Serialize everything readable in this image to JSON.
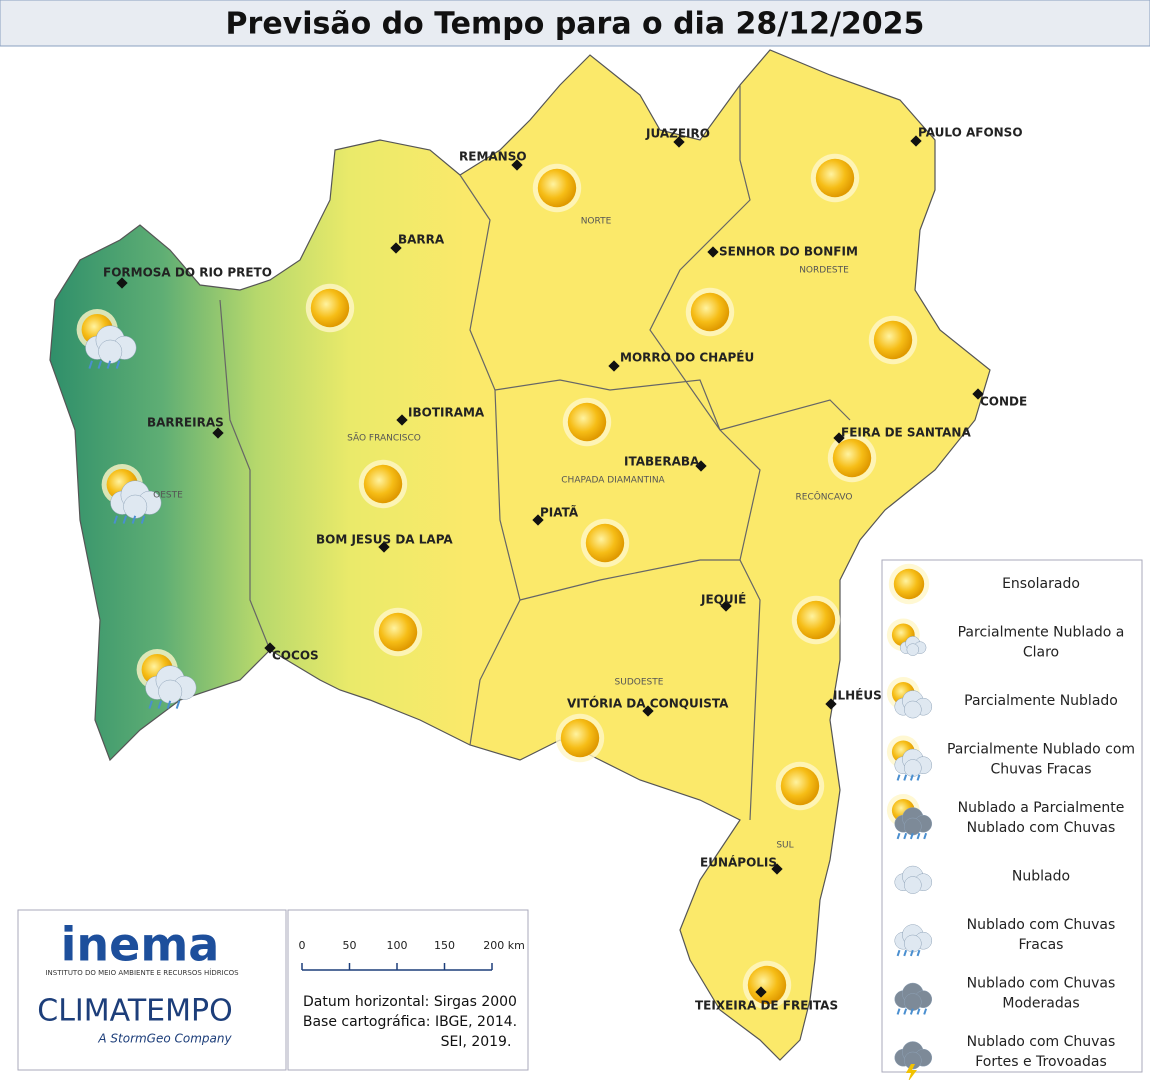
{
  "title": "Previsão do Tempo para o dia 28/12/2025",
  "cities": [
    "FORMOSA DO RIO PRETO",
    "BARRA",
    "REMANSO",
    "JUAZEIRO",
    "PAULO AFONSO",
    "SENHOR DO BONFIM",
    "MORRO DO CHAPÉU",
    "BARREIRAS",
    "IBOTIRAMA",
    "FEIRA DE SANTANA",
    "CONDE",
    "ITABERABA",
    "PIATÃ",
    "BOM JESUS DA LAPA",
    "JEQUIÉ",
    "COCOS",
    "ILHÉUS",
    "VITÓRIA DA CONQUISTA",
    "EUNÁPOLIS",
    "TEIXEIRA DE FREITAS"
  ],
  "regions": [
    "NORTE",
    "NORDESTE",
    "SÃO FRANCISCO",
    "CHAPADA DIAMANTINA",
    "OESTE",
    "RECÔNCAVO",
    "SUDOESTE",
    "SUL"
  ],
  "legend": [
    "Ensolarado",
    "Parcialmente Nublado a Claro",
    "Parcialmente Nublado",
    "Parcialmente Nublado com Chuvas Fracas",
    "Nublado a Parcialmente Nublado com Chuvas",
    "Nublado",
    "Nublado com Chuvas Fracas",
    "Nublado com Chuvas Moderadas",
    "Nublado com Chuvas Fortes e Trovoadas"
  ],
  "logos": {
    "inema": "inema",
    "inema_subtitle": "INSTITUTO DO MEIO AMBIENTE E RECURSOS HÍDRICOS",
    "climatempo": "CLIMATEMPO",
    "climatempo_tagline": "A StormGeo Company"
  },
  "scale_bar": {
    "ticks": [
      0,
      50,
      100,
      150,
      {
        "value": 200,
        "label": "200 km"
      }
    ]
  },
  "notes": [
    "Datum horizontal: Sirgas 2000",
    "Base cartográfica: IBGE, 2014.",
    "SEI, 2019."
  ]
}
